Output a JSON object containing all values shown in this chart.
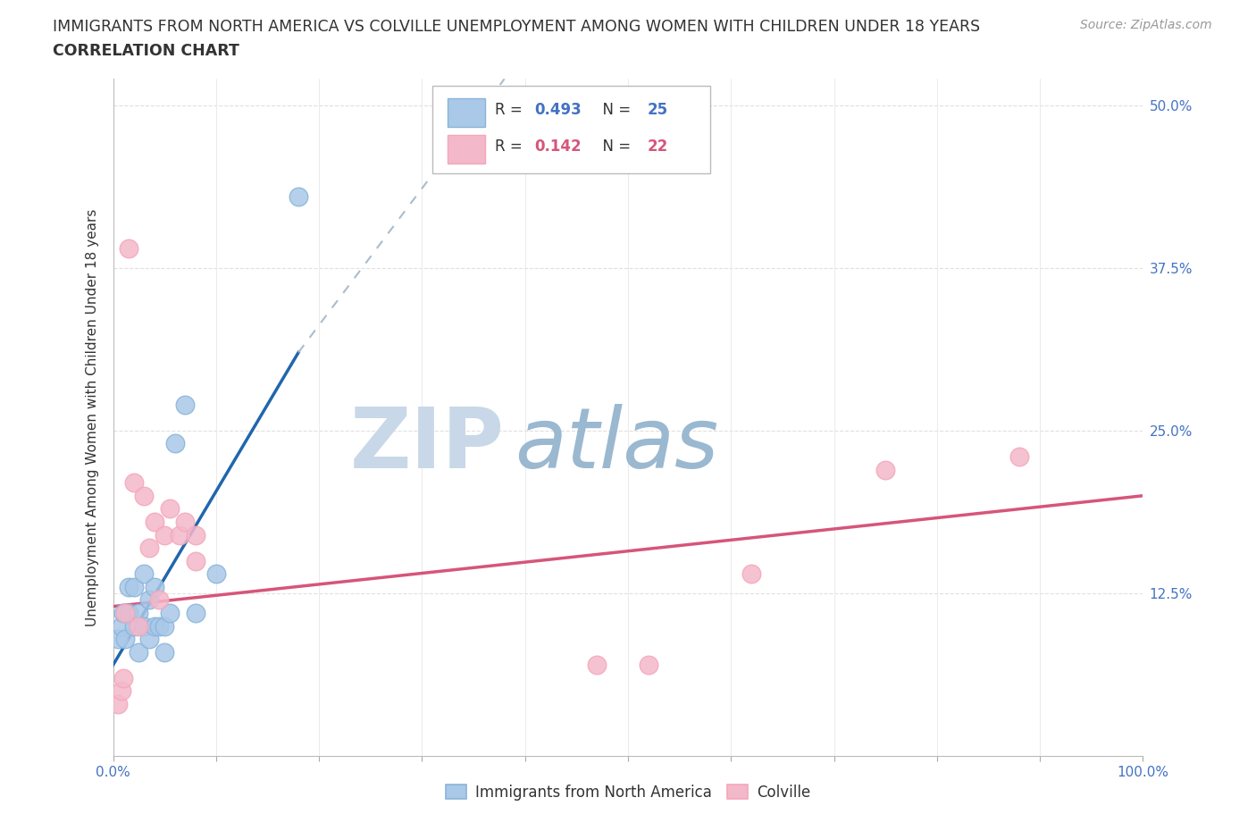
{
  "title_line1": "IMMIGRANTS FROM NORTH AMERICA VS COLVILLE UNEMPLOYMENT AMONG WOMEN WITH CHILDREN UNDER 18 YEARS",
  "title_line2": "CORRELATION CHART",
  "source_text": "Source: ZipAtlas.com",
  "ylabel": "Unemployment Among Women with Children Under 18 years",
  "xlim": [
    0,
    100
  ],
  "ylim": [
    0,
    52
  ],
  "xticks": [
    0,
    10,
    20,
    30,
    40,
    50,
    60,
    70,
    80,
    90,
    100
  ],
  "xticklabels": [
    "0.0%",
    "",
    "",
    "",
    "",
    "",
    "",
    "",
    "",
    "",
    "100.0%"
  ],
  "ytick_positions": [
    0,
    12.5,
    25.0,
    37.5,
    50.0
  ],
  "ytick_labels": [
    "",
    "12.5%",
    "25.0%",
    "37.5%",
    "50.0%"
  ],
  "legend_r1": "0.493",
  "legend_n1": "25",
  "legend_r2": "0.142",
  "legend_n2": "22",
  "watermark_zip": "ZIP",
  "watermark_atlas": "atlas",
  "watermark_zip_color": "#c8d8e8",
  "watermark_atlas_color": "#9ab8d0",
  "background_color": "#ffffff",
  "grid_color": "#e0e0e0",
  "blue_scatter_x": [
    0.5,
    0.8,
    1.0,
    1.2,
    1.5,
    1.5,
    2.0,
    2.0,
    2.5,
    2.5,
    3.0,
    3.0,
    3.5,
    3.5,
    4.0,
    4.0,
    4.5,
    5.0,
    5.0,
    5.5,
    6.0,
    7.0,
    8.0,
    10.0,
    18.0
  ],
  "blue_scatter_y": [
    9,
    10,
    11,
    9,
    11,
    13,
    10,
    13,
    8,
    11,
    10,
    14,
    9,
    12,
    10,
    13,
    10,
    8,
    10,
    11,
    24,
    27,
    11,
    14,
    43
  ],
  "pink_scatter_x": [
    0.5,
    0.8,
    1.0,
    1.2,
    1.5,
    2.0,
    2.5,
    3.0,
    3.5,
    4.0,
    4.5,
    5.0,
    5.5,
    6.5,
    7.0,
    8.0,
    8.0,
    47,
    52,
    62,
    75,
    88
  ],
  "pink_scatter_y": [
    4,
    5,
    6,
    11,
    39,
    21,
    10,
    20,
    16,
    18,
    12,
    17,
    19,
    17,
    18,
    15,
    17,
    7,
    7,
    14,
    22,
    23
  ],
  "blue_line_x0": 0,
  "blue_line_y0": 7,
  "blue_line_x1": 18,
  "blue_line_y1": 31,
  "blue_dash_x0": 18,
  "blue_dash_y0": 31,
  "blue_dash_x1": 38,
  "blue_dash_y1": 52,
  "pink_line_x0": 0,
  "pink_line_y0": 11.5,
  "pink_line_x1": 100,
  "pink_line_y1": 20.0,
  "blue_color": "#89b4d9",
  "blue_line_color": "#2166ac",
  "pink_color": "#f4a7b9",
  "pink_line_color": "#d6557a",
  "blue_scatter_face": "#aac8e8",
  "pink_scatter_face": "#f4b8cb",
  "tick_color": "#4472c4"
}
